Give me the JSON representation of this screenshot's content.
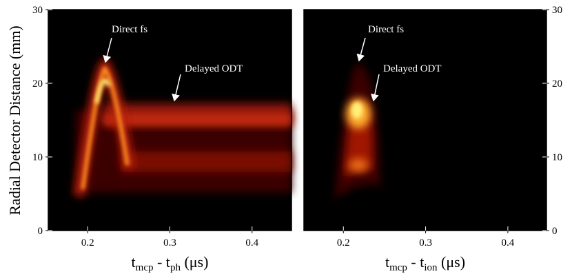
{
  "chart_data": [
    {
      "type": "heatmap",
      "xlabel": [
        {
          "text": "t"
        },
        {
          "text": "mcp",
          "sub": true
        },
        {
          "text": " - t"
        },
        {
          "text": "ph",
          "sub": true
        },
        {
          "text": " (μs)"
        }
      ],
      "ylabel": "Radial Detector Distance (mm)",
      "xlim": [
        0.152,
        0.448
      ],
      "xticks": [
        0.2,
        0.3,
        0.4
      ],
      "ylim": [
        0,
        30
      ],
      "yticks": [
        0,
        10,
        20,
        30
      ],
      "ytick_side": "left",
      "annotations": [
        "Direct fs",
        "Delayed ODT"
      ]
    },
    {
      "type": "heatmap",
      "xlabel": [
        {
          "text": "t"
        },
        {
          "text": "mcp",
          "sub": true
        },
        {
          "text": " - t"
        },
        {
          "text": "ion",
          "sub": true
        },
        {
          "text": " (μs)"
        }
      ],
      "xlim": [
        0.152,
        0.447
      ],
      "xticks": [
        0.2,
        0.3,
        0.4
      ],
      "ylim": [
        0,
        30
      ],
      "yticks": [
        0,
        10,
        20,
        30
      ],
      "ytick_side": "right",
      "annotations": [
        "Direct fs",
        "Delayed ODT"
      ]
    }
  ]
}
